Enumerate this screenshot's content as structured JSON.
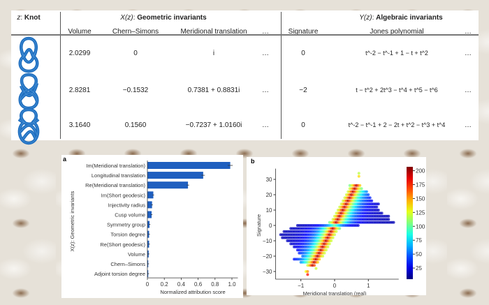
{
  "table": {
    "knot_header": {
      "var": "z",
      "label": "Knot"
    },
    "geometric_header": {
      "var": "X(z)",
      "label": "Geometric invariants"
    },
    "algebraic_header": {
      "var": "Y(z)",
      "label": "Algebraic invariants"
    },
    "columns": [
      "Volume",
      "Chern–Simons",
      "Meridional translation",
      "…",
      "Signature",
      "Jones polynomial",
      "…"
    ],
    "rows": [
      {
        "volume": "2.0299",
        "chern_simons": "0",
        "meridional": "i",
        "more1": "…",
        "signature": "0",
        "jones": "t^-2 − t^-1 + 1 − t + t^2",
        "more2": "…"
      },
      {
        "volume": "2.8281",
        "chern_simons": "−0.1532",
        "meridional": "0.7381 + 0.8831i",
        "more1": "…",
        "signature": "−2",
        "jones": "t − t^2 + 2t^3 − t^4 + t^5 − t^6",
        "more2": "…"
      },
      {
        "volume": "3.1640",
        "chern_simons": "0.1560",
        "meridional": "−0.7237 + 1.0160i",
        "more1": "…",
        "signature": "0",
        "jones": "t^-2 − t^-1 + 2 − 2t + t^2 − t^3 + t^4",
        "more2": "…"
      }
    ],
    "knot_color": "#1f6fc0"
  },
  "chart_data": [
    {
      "panel_label": "a",
      "type": "bar",
      "orientation": "horizontal",
      "categories": [
        "Im(Meridional translation)",
        "Longitudinal translation",
        "Re(Meridional translation)",
        "Im(Short geodesic)",
        "Injectivity radius",
        "Cusp volume",
        "Symmetry group",
        "Torsion degree",
        "Re(Short geodesic)",
        "Volume",
        "Chern–Simons",
        "Adjoint torsion degree"
      ],
      "values": [
        0.98,
        0.66,
        0.48,
        0.07,
        0.055,
        0.05,
        0.025,
        0.02,
        0.02,
        0.015,
        0.01,
        0.01
      ],
      "error_bars": true,
      "xlabel": "Normalized attribution score",
      "ylabel": "X(z): Geometric invariants",
      "xticks": [
        "0",
        "0.2",
        "0.4",
        "0.6",
        "0.8",
        "1.0"
      ],
      "xlim": [
        0,
        1.07
      ],
      "color": "#1f5fbf"
    },
    {
      "panel_label": "b",
      "type": "scatter",
      "xlabel": "Meridional translation (real)",
      "ylabel": "Signature",
      "xticks": [
        "−1",
        "0",
        "1"
      ],
      "yticks": [
        "30",
        "20",
        "10",
        "0",
        "−10",
        "−20",
        "−30"
      ],
      "xlim": [
        -1.75,
        1.9
      ],
      "ylim": [
        -35,
        37
      ],
      "colorbar": {
        "ticks": [
          "200",
          "175",
          "150",
          "125",
          "100",
          "75",
          "50",
          "25"
        ],
        "range": [
          5,
          207
        ],
        "colormap": "jet"
      },
      "rows": [
        {
          "signature": 34,
          "x": [
            0.72,
            0.72
          ]
        },
        {
          "signature": 32,
          "x": [
            0.72,
            0.72
          ]
        },
        {
          "signature": 26,
          "x": [
            0.45,
            0.75
          ]
        },
        {
          "signature": 24,
          "x": [
            0.45,
            0.8
          ]
        },
        {
          "signature": 22,
          "x": [
            0.4,
            0.95
          ]
        },
        {
          "signature": 20,
          "x": [
            0.35,
            1.0
          ]
        },
        {
          "signature": 18,
          "x": [
            0.3,
            1.05
          ]
        },
        {
          "signature": 16,
          "x": [
            0.25,
            1.1
          ]
        },
        {
          "signature": 14,
          "x": [
            0.2,
            1.3
          ]
        },
        {
          "signature": 12,
          "x": [
            0.15,
            1.25
          ]
        },
        {
          "signature": 10,
          "x": [
            0.1,
            1.3
          ]
        },
        {
          "signature": 8,
          "x": [
            0.05,
            1.4
          ]
        },
        {
          "signature": 6,
          "x": [
            0.0,
            1.6
          ]
        },
        {
          "signature": 4,
          "x": [
            -0.05,
            1.6
          ]
        },
        {
          "signature": 2,
          "x": [
            -0.15,
            1.75
          ]
        },
        {
          "signature": 0,
          "x": [
            -1.1,
            0.7
          ]
        },
        {
          "signature": -2,
          "x": [
            -1.3,
            0.15
          ]
        },
        {
          "signature": -4,
          "x": [
            -1.5,
            0.05
          ]
        },
        {
          "signature": -6,
          "x": [
            -1.6,
            0.0
          ]
        },
        {
          "signature": -8,
          "x": [
            -1.55,
            -0.05
          ]
        },
        {
          "signature": -10,
          "x": [
            -1.4,
            -0.1
          ]
        },
        {
          "signature": -12,
          "x": [
            -1.3,
            -0.15
          ]
        },
        {
          "signature": -14,
          "x": [
            -1.2,
            -0.2
          ]
        },
        {
          "signature": -16,
          "x": [
            -1.1,
            -0.25
          ]
        },
        {
          "signature": -18,
          "x": [
            -1.05,
            -0.3
          ]
        },
        {
          "signature": -20,
          "x": [
            -0.95,
            -0.35
          ]
        },
        {
          "signature": -22,
          "x": [
            -1.2,
            -0.45
          ]
        },
        {
          "signature": -24,
          "x": [
            -1.0,
            -0.5
          ]
        },
        {
          "signature": -26,
          "x": [
            -0.8,
            -0.6
          ]
        },
        {
          "signature": -28,
          "x": [
            -0.55,
            -0.55
          ]
        },
        {
          "signature": -30,
          "x": [
            -0.85,
            -0.8
          ]
        },
        {
          "signature": -32,
          "x": [
            -0.8,
            -0.8
          ]
        }
      ]
    }
  ]
}
